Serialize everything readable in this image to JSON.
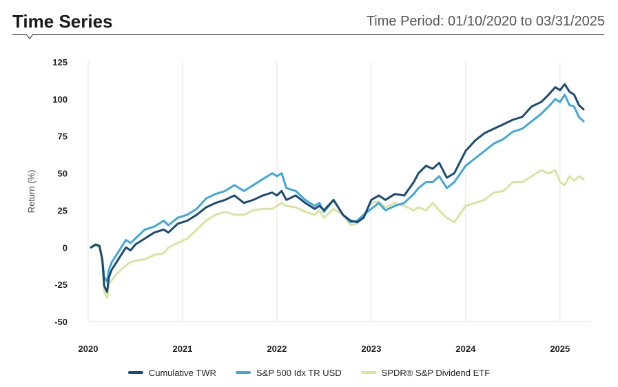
{
  "header": {
    "title": "Time Series",
    "period": "Time Period: 01/10/2020 to 03/31/2025"
  },
  "chart_data": {
    "type": "line",
    "ylabel": "Return (%)",
    "ylim": [
      -50,
      125
    ],
    "yticks": [
      125,
      100,
      75,
      50,
      25,
      0,
      -25,
      -50
    ],
    "xlim": [
      2020,
      2025.33
    ],
    "xticks": [
      2020,
      2021,
      2022,
      2023,
      2024,
      2025
    ],
    "grid": "vertical",
    "legend_position": "bottom",
    "series": [
      {
        "name": "Cumulative TWR",
        "color": "#1b4a72",
        "x": [
          2020.03,
          2020.08,
          2020.12,
          2020.15,
          2020.17,
          2020.2,
          2020.22,
          2020.25,
          2020.3,
          2020.35,
          2020.4,
          2020.45,
          2020.5,
          2020.6,
          2020.7,
          2020.8,
          2020.85,
          2020.95,
          2021.05,
          2021.15,
          2021.25,
          2021.35,
          2021.45,
          2021.55,
          2021.65,
          2021.75,
          2021.85,
          2021.95,
          2022.0,
          2022.05,
          2022.1,
          2022.2,
          2022.3,
          2022.4,
          2022.45,
          2022.5,
          2022.6,
          2022.7,
          2022.78,
          2022.85,
          2022.92,
          2023.0,
          2023.08,
          2023.15,
          2023.25,
          2023.35,
          2023.45,
          2023.5,
          2023.58,
          2023.65,
          2023.72,
          2023.8,
          2023.88,
          2024.0,
          2024.1,
          2024.2,
          2024.3,
          2024.4,
          2024.5,
          2024.6,
          2024.7,
          2024.8,
          2024.88,
          2024.95,
          2025.0,
          2025.05,
          2025.1,
          2025.15,
          2025.2,
          2025.25
        ],
        "y": [
          0,
          2,
          1,
          -8,
          -26,
          -30,
          -20,
          -15,
          -10,
          -5,
          0,
          -2,
          2,
          6,
          10,
          12,
          10,
          16,
          18,
          22,
          27,
          30,
          32,
          35,
          30,
          32,
          35,
          37,
          35,
          38,
          32,
          35,
          30,
          26,
          28,
          25,
          32,
          22,
          18,
          17,
          20,
          32,
          35,
          32,
          36,
          35,
          44,
          50,
          55,
          53,
          57,
          47,
          50,
          65,
          72,
          77,
          80,
          83,
          86,
          88,
          95,
          98,
          103,
          108,
          106,
          110,
          105,
          103,
          96,
          93
        ]
      },
      {
        "name": "S&P 500 Idx TR USD",
        "color": "#3ea7db",
        "x": [
          2020.03,
          2020.08,
          2020.12,
          2020.15,
          2020.17,
          2020.2,
          2020.22,
          2020.25,
          2020.3,
          2020.35,
          2020.4,
          2020.45,
          2020.5,
          2020.6,
          2020.7,
          2020.8,
          2020.85,
          2020.95,
          2021.05,
          2021.15,
          2021.25,
          2021.35,
          2021.45,
          2021.55,
          2021.65,
          2021.75,
          2021.85,
          2021.95,
          2022.0,
          2022.05,
          2022.1,
          2022.2,
          2022.3,
          2022.4,
          2022.45,
          2022.5,
          2022.6,
          2022.7,
          2022.78,
          2022.85,
          2022.92,
          2023.0,
          2023.08,
          2023.15,
          2023.25,
          2023.35,
          2023.45,
          2023.5,
          2023.58,
          2023.65,
          2023.72,
          2023.8,
          2023.88,
          2024.0,
          2024.1,
          2024.2,
          2024.3,
          2024.4,
          2024.5,
          2024.6,
          2024.7,
          2024.8,
          2024.88,
          2024.95,
          2025.0,
          2025.05,
          2025.1,
          2025.15,
          2025.2,
          2025.25
        ],
        "y": [
          0,
          2,
          1,
          -8,
          -20,
          -23,
          -15,
          -10,
          -5,
          0,
          5,
          3,
          6,
          12,
          14,
          18,
          15,
          20,
          22,
          26,
          33,
          36,
          38,
          42,
          38,
          42,
          46,
          50,
          48,
          50,
          40,
          38,
          32,
          28,
          30,
          24,
          32,
          22,
          17,
          18,
          22,
          26,
          30,
          25,
          28,
          30,
          36,
          40,
          44,
          44,
          48,
          40,
          44,
          55,
          60,
          65,
          70,
          73,
          78,
          80,
          85,
          90,
          95,
          100,
          98,
          103,
          96,
          95,
          88,
          85
        ]
      },
      {
        "name": "SPDR® S&P Dividend ETF",
        "color": "#d9e4a0",
        "x": [
          2020.03,
          2020.08,
          2020.12,
          2020.15,
          2020.17,
          2020.2,
          2020.22,
          2020.25,
          2020.3,
          2020.35,
          2020.4,
          2020.45,
          2020.5,
          2020.6,
          2020.7,
          2020.8,
          2020.85,
          2020.95,
          2021.05,
          2021.15,
          2021.25,
          2021.35,
          2021.45,
          2021.55,
          2021.65,
          2021.75,
          2021.85,
          2021.95,
          2022.0,
          2022.05,
          2022.1,
          2022.2,
          2022.3,
          2022.4,
          2022.45,
          2022.5,
          2022.6,
          2022.7,
          2022.78,
          2022.85,
          2022.92,
          2023.0,
          2023.08,
          2023.15,
          2023.25,
          2023.35,
          2023.45,
          2023.5,
          2023.58,
          2023.65,
          2023.72,
          2023.8,
          2023.88,
          2024.0,
          2024.1,
          2024.2,
          2024.3,
          2024.4,
          2024.5,
          2024.6,
          2024.7,
          2024.8,
          2024.88,
          2024.95,
          2025.0,
          2025.05,
          2025.1,
          2025.15,
          2025.2,
          2025.25
        ],
        "y": [
          0,
          1,
          0,
          -10,
          -30,
          -34,
          -25,
          -22,
          -18,
          -15,
          -12,
          -10,
          -9,
          -8,
          -5,
          -4,
          0,
          3,
          6,
          12,
          18,
          22,
          24,
          22,
          22,
          25,
          26,
          26,
          28,
          30,
          28,
          27,
          24,
          22,
          25,
          20,
          26,
          22,
          15,
          16,
          22,
          30,
          31,
          27,
          30,
          28,
          25,
          27,
          25,
          30,
          25,
          20,
          17,
          28,
          30,
          32,
          37,
          38,
          44,
          44,
          48,
          52,
          50,
          52,
          44,
          42,
          48,
          45,
          48,
          46
        ]
      }
    ]
  }
}
